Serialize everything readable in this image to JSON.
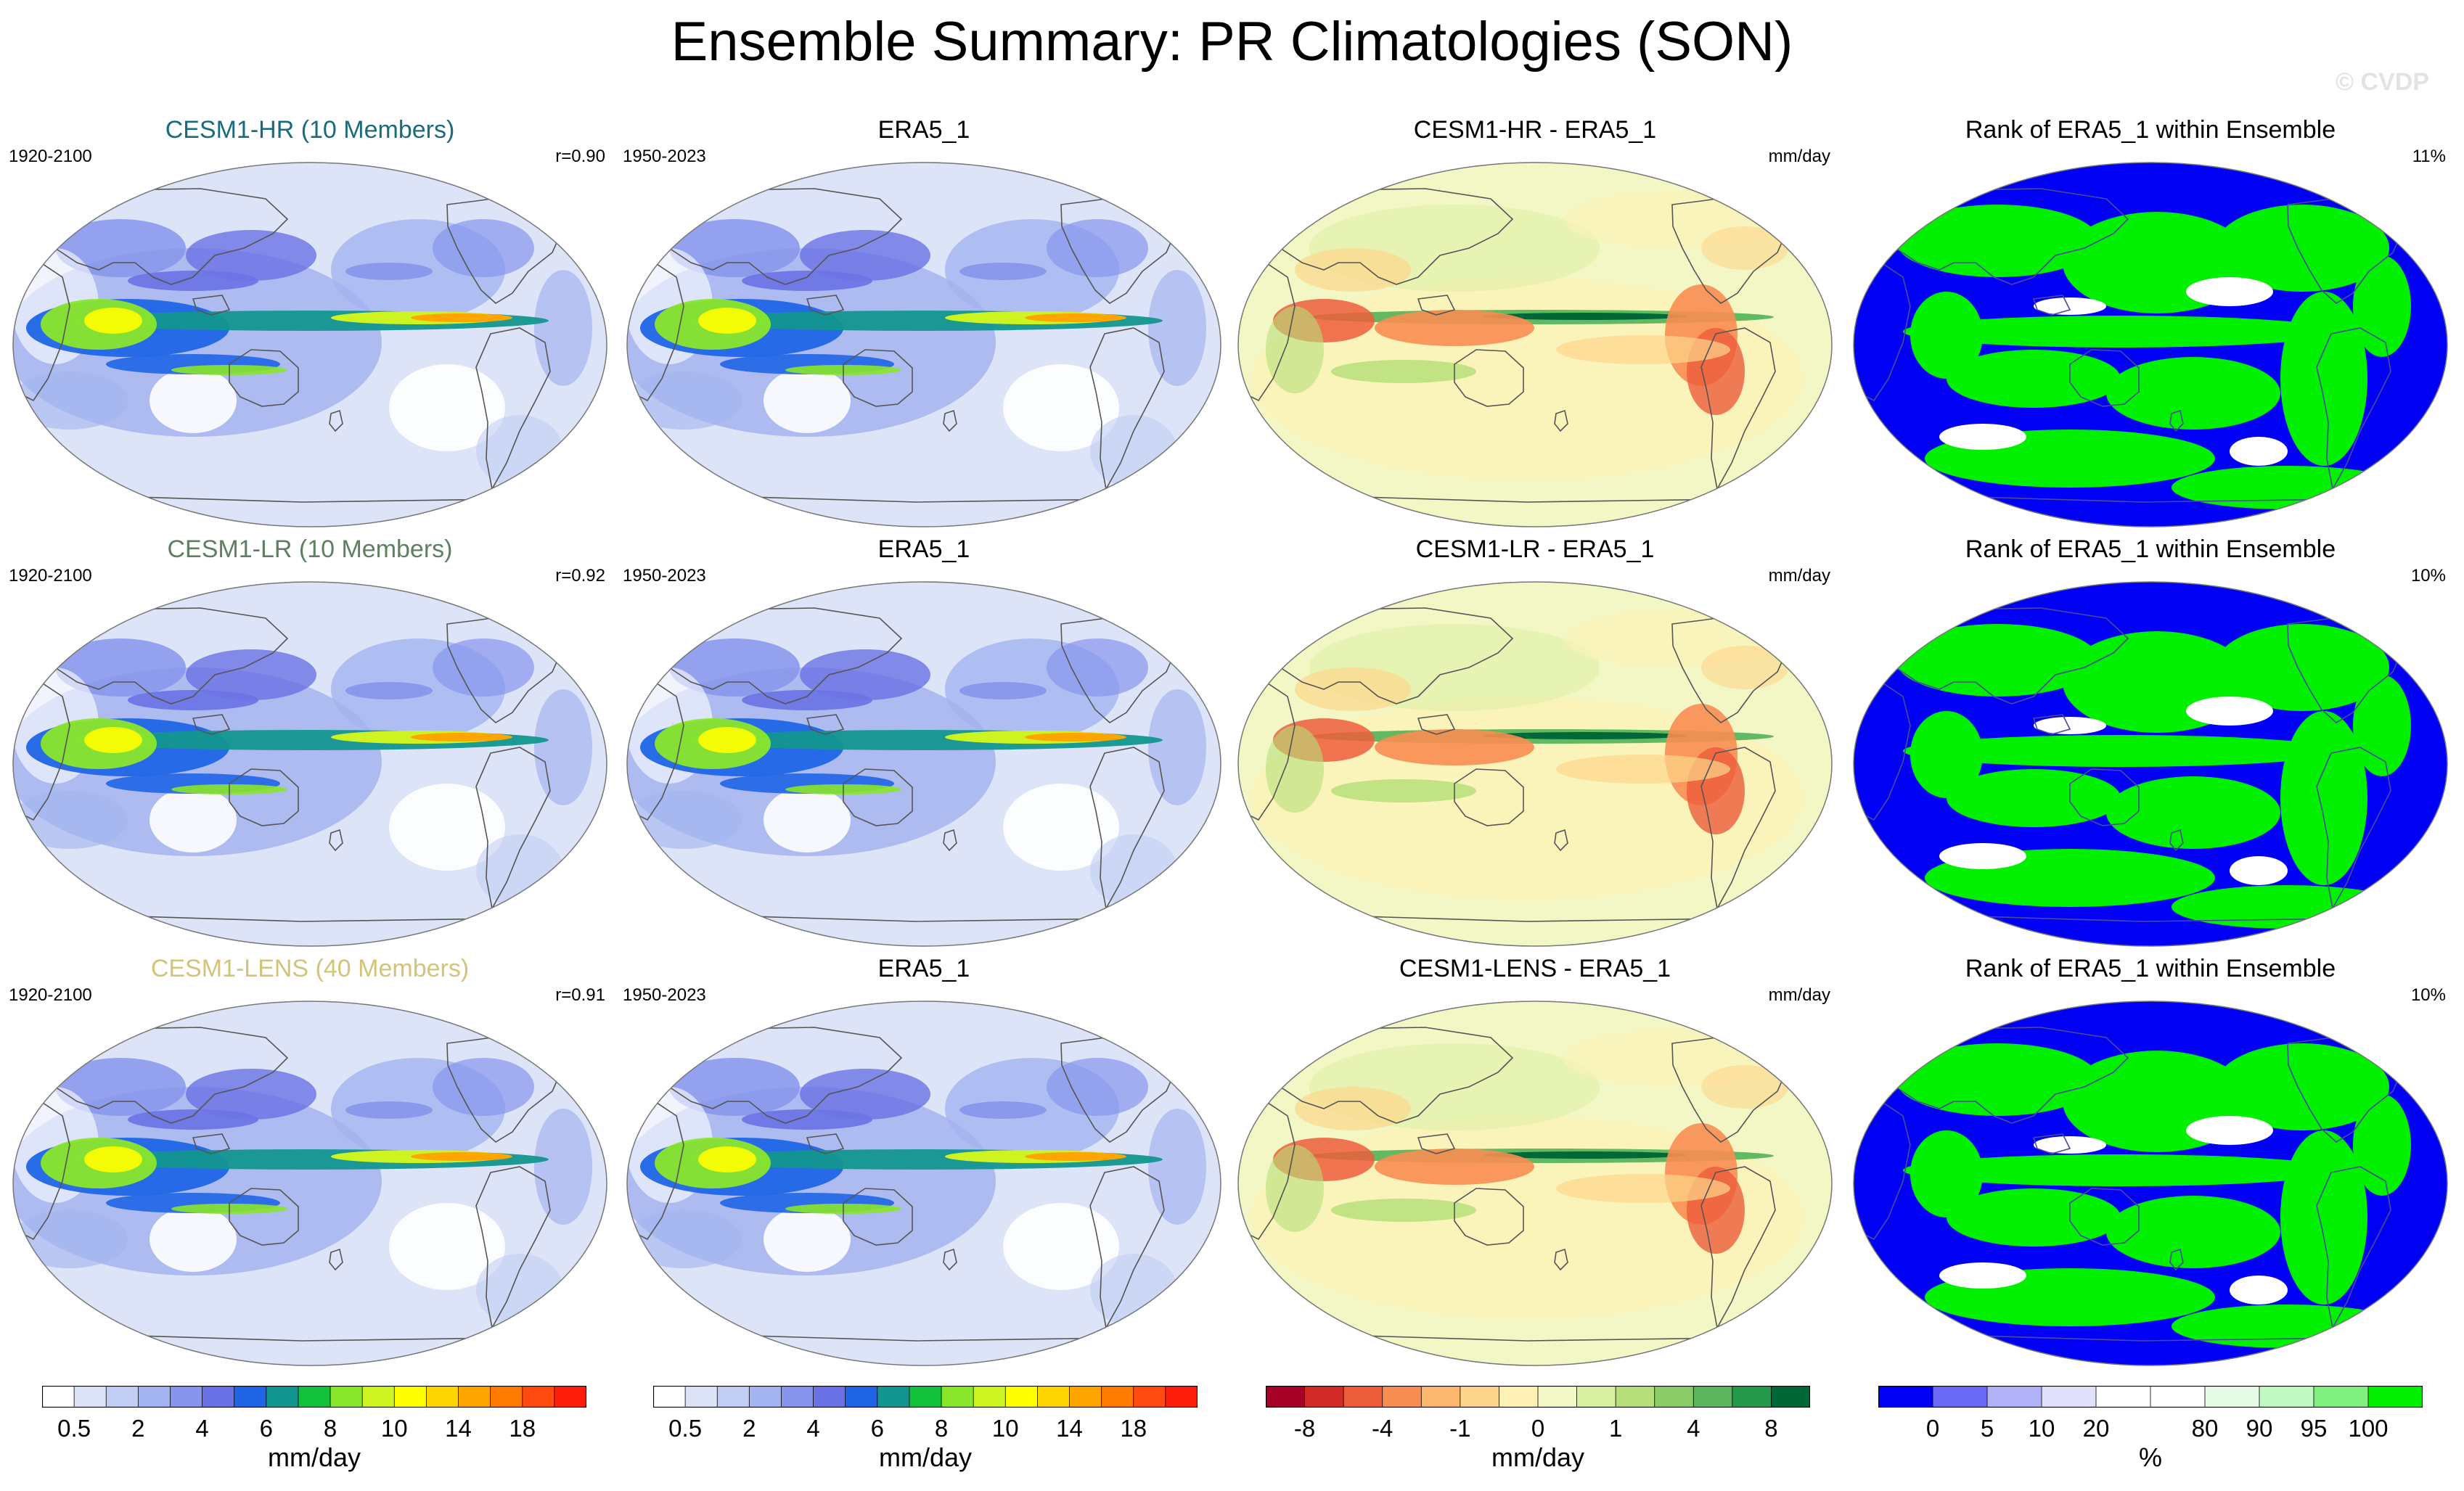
{
  "title": "Ensemble Summary: PR Climatologies (SON)",
  "watermark": "© CVDP",
  "rows": [
    {
      "model": {
        "title": "CESM1-HR (10 Members)",
        "title_color": "#1a6b7d",
        "years": "1920-2100",
        "r": "r=0.90"
      },
      "obs": {
        "title": "ERA5_1",
        "years": "1950-2023"
      },
      "diff": {
        "title": "CESM1-HR - ERA5_1",
        "units": "mm/day"
      },
      "rank": {
        "title": "Rank of ERA5_1 within Ensemble",
        "pct": "11%"
      }
    },
    {
      "model": {
        "title": "CESM1-LR (10 Members)",
        "title_color": "#5f7f62",
        "years": "1920-2100",
        "r": "r=0.92"
      },
      "obs": {
        "title": "ERA5_1",
        "years": "1950-2023"
      },
      "diff": {
        "title": "CESM1-LR - ERA5_1",
        "units": "mm/day"
      },
      "rank": {
        "title": "Rank of ERA5_1 within Ensemble",
        "pct": "10%"
      }
    },
    {
      "model": {
        "title": "CESM1-LENS (40 Members)",
        "title_color": "#d4c47a",
        "years": "1920-2100",
        "r": "r=0.91"
      },
      "obs": {
        "title": "ERA5_1",
        "years": "1950-2023"
      },
      "diff": {
        "title": "CESM1-LENS - ERA5_1",
        "units": "mm/day"
      },
      "rank": {
        "title": "Rank of ERA5_1 within Ensemble",
        "pct": "10%"
      }
    }
  ],
  "colorbars": [
    {
      "units": "mm/day",
      "colors": [
        "#ffffff",
        "#dde4f8",
        "#c2cdf3",
        "#a4b4f0",
        "#8795ec",
        "#6a72e5",
        "#1f65e6",
        "#13968f",
        "#12c23c",
        "#8ae62a",
        "#cdf320",
        "#ffff00",
        "#ffd600",
        "#ffa500",
        "#ff7a00",
        "#ff4a10",
        "#ff1e0a"
      ],
      "labels": [
        "0.5",
        "2",
        "4",
        "6",
        "8",
        "10",
        "14",
        "18"
      ]
    },
    {
      "units": "mm/day",
      "colors": [
        "#ffffff",
        "#dde4f8",
        "#c2cdf3",
        "#a4b4f0",
        "#8795ec",
        "#6a72e5",
        "#1f65e6",
        "#13968f",
        "#12c23c",
        "#8ae62a",
        "#cdf320",
        "#ffff00",
        "#ffd600",
        "#ffa500",
        "#ff7a00",
        "#ff4a10",
        "#ff1e0a"
      ],
      "labels": [
        "0.5",
        "2",
        "4",
        "6",
        "8",
        "10",
        "14",
        "18"
      ]
    },
    {
      "units": "mm/day",
      "colors": [
        "#a50026",
        "#d22b27",
        "#ec5d3c",
        "#f88d52",
        "#fcb76e",
        "#fdd68b",
        "#fdf1b5",
        "#f2f7c5",
        "#d9efa2",
        "#b6df7a",
        "#8ccc68",
        "#5bb55d",
        "#259a4b",
        "#006837"
      ],
      "labels": [
        "-8",
        "-4",
        "-1",
        "0",
        "1",
        "4",
        "8"
      ]
    },
    {
      "units": "%",
      "colors": [
        "#0000f5",
        "#6a6af6",
        "#b2b2f8",
        "#e0e0fb",
        "#ffffff",
        "#ffffff",
        "#e6fbe6",
        "#c2f8c2",
        "#80f080",
        "#00f000"
      ],
      "labels": [
        "0",
        "5",
        "10",
        "20",
        "80",
        "90",
        "95",
        "100"
      ]
    }
  ]
}
